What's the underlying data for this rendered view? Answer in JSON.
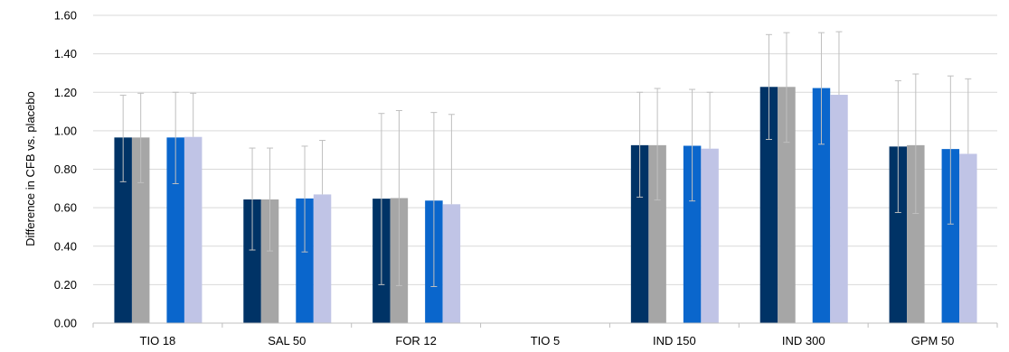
{
  "chart_data": {
    "type": "bar",
    "title": "",
    "xlabel": "",
    "ylabel": "Difference in CFB vs. placebo",
    "ylim": [
      0,
      1.6
    ],
    "yticks": [
      "0.00",
      "0.20",
      "0.40",
      "0.60",
      "0.80",
      "1.00",
      "1.20",
      "1.40",
      "1.60"
    ],
    "grid": true,
    "legend": "none",
    "categories": [
      "TIO 18",
      "SAL 50",
      "FOR 12",
      "TIO 5",
      "IND 150",
      "IND 300",
      "GPM 50"
    ],
    "series": [
      {
        "color": "#003366",
        "values": [
          0.965,
          0.643,
          0.647,
          null,
          0.925,
          1.228,
          0.918
        ],
        "lower": [
          0.735,
          0.38,
          0.2,
          null,
          0.655,
          0.955,
          0.575
        ],
        "upper": [
          1.185,
          0.91,
          1.09,
          null,
          1.2,
          1.5,
          1.26
        ]
      },
      {
        "color": "#a6a6a6",
        "values": [
          0.965,
          0.643,
          0.65,
          null,
          0.925,
          1.228,
          0.925
        ],
        "lower": [
          0.73,
          0.375,
          0.195,
          null,
          0.64,
          0.94,
          0.57
        ],
        "upper": [
          1.195,
          0.91,
          1.105,
          null,
          1.22,
          1.51,
          1.295
        ]
      },
      {
        "color": "#0a66cc",
        "values": [
          0.965,
          0.648,
          0.637,
          null,
          0.922,
          1.222,
          0.905
        ],
        "lower": [
          0.725,
          0.37,
          0.19,
          null,
          0.635,
          0.93,
          0.515
        ],
        "upper": [
          1.2,
          0.92,
          1.095,
          null,
          1.215,
          1.51,
          1.285
        ]
      },
      {
        "color": "#c0c4e6",
        "values": [
          0.968,
          0.669,
          0.618,
          null,
          0.907,
          1.187,
          0.88
        ],
        "lower": null,
        "upper": [
          1.195,
          0.95,
          1.085,
          null,
          1.2,
          1.515,
          1.27
        ]
      }
    ]
  }
}
